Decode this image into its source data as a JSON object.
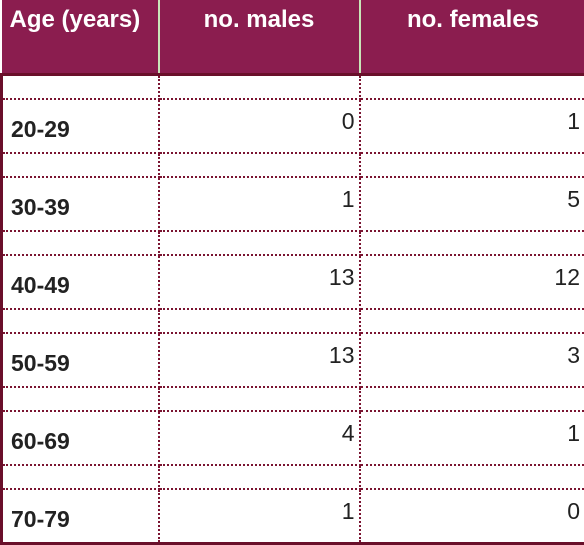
{
  "table": {
    "headers": [
      "Age (years)",
      "no. males",
      "no. females"
    ],
    "rows": [
      {
        "age": "20-29",
        "males": "0",
        "females": "1"
      },
      {
        "age": "30-39",
        "males": "1",
        "females": "5"
      },
      {
        "age": "40-49",
        "males": "13",
        "females": "12"
      },
      {
        "age": "50-59",
        "males": "13",
        "females": "3"
      },
      {
        "age": "60-69",
        "males": "4",
        "females": "1"
      },
      {
        "age": "70-79",
        "males": "1",
        "females": "0"
      }
    ]
  },
  "colors": {
    "header_bg": "#8b1d4f",
    "header_text": "#ffffff",
    "border": "#6a0f2a",
    "header_divider": "#c9e6b8"
  }
}
